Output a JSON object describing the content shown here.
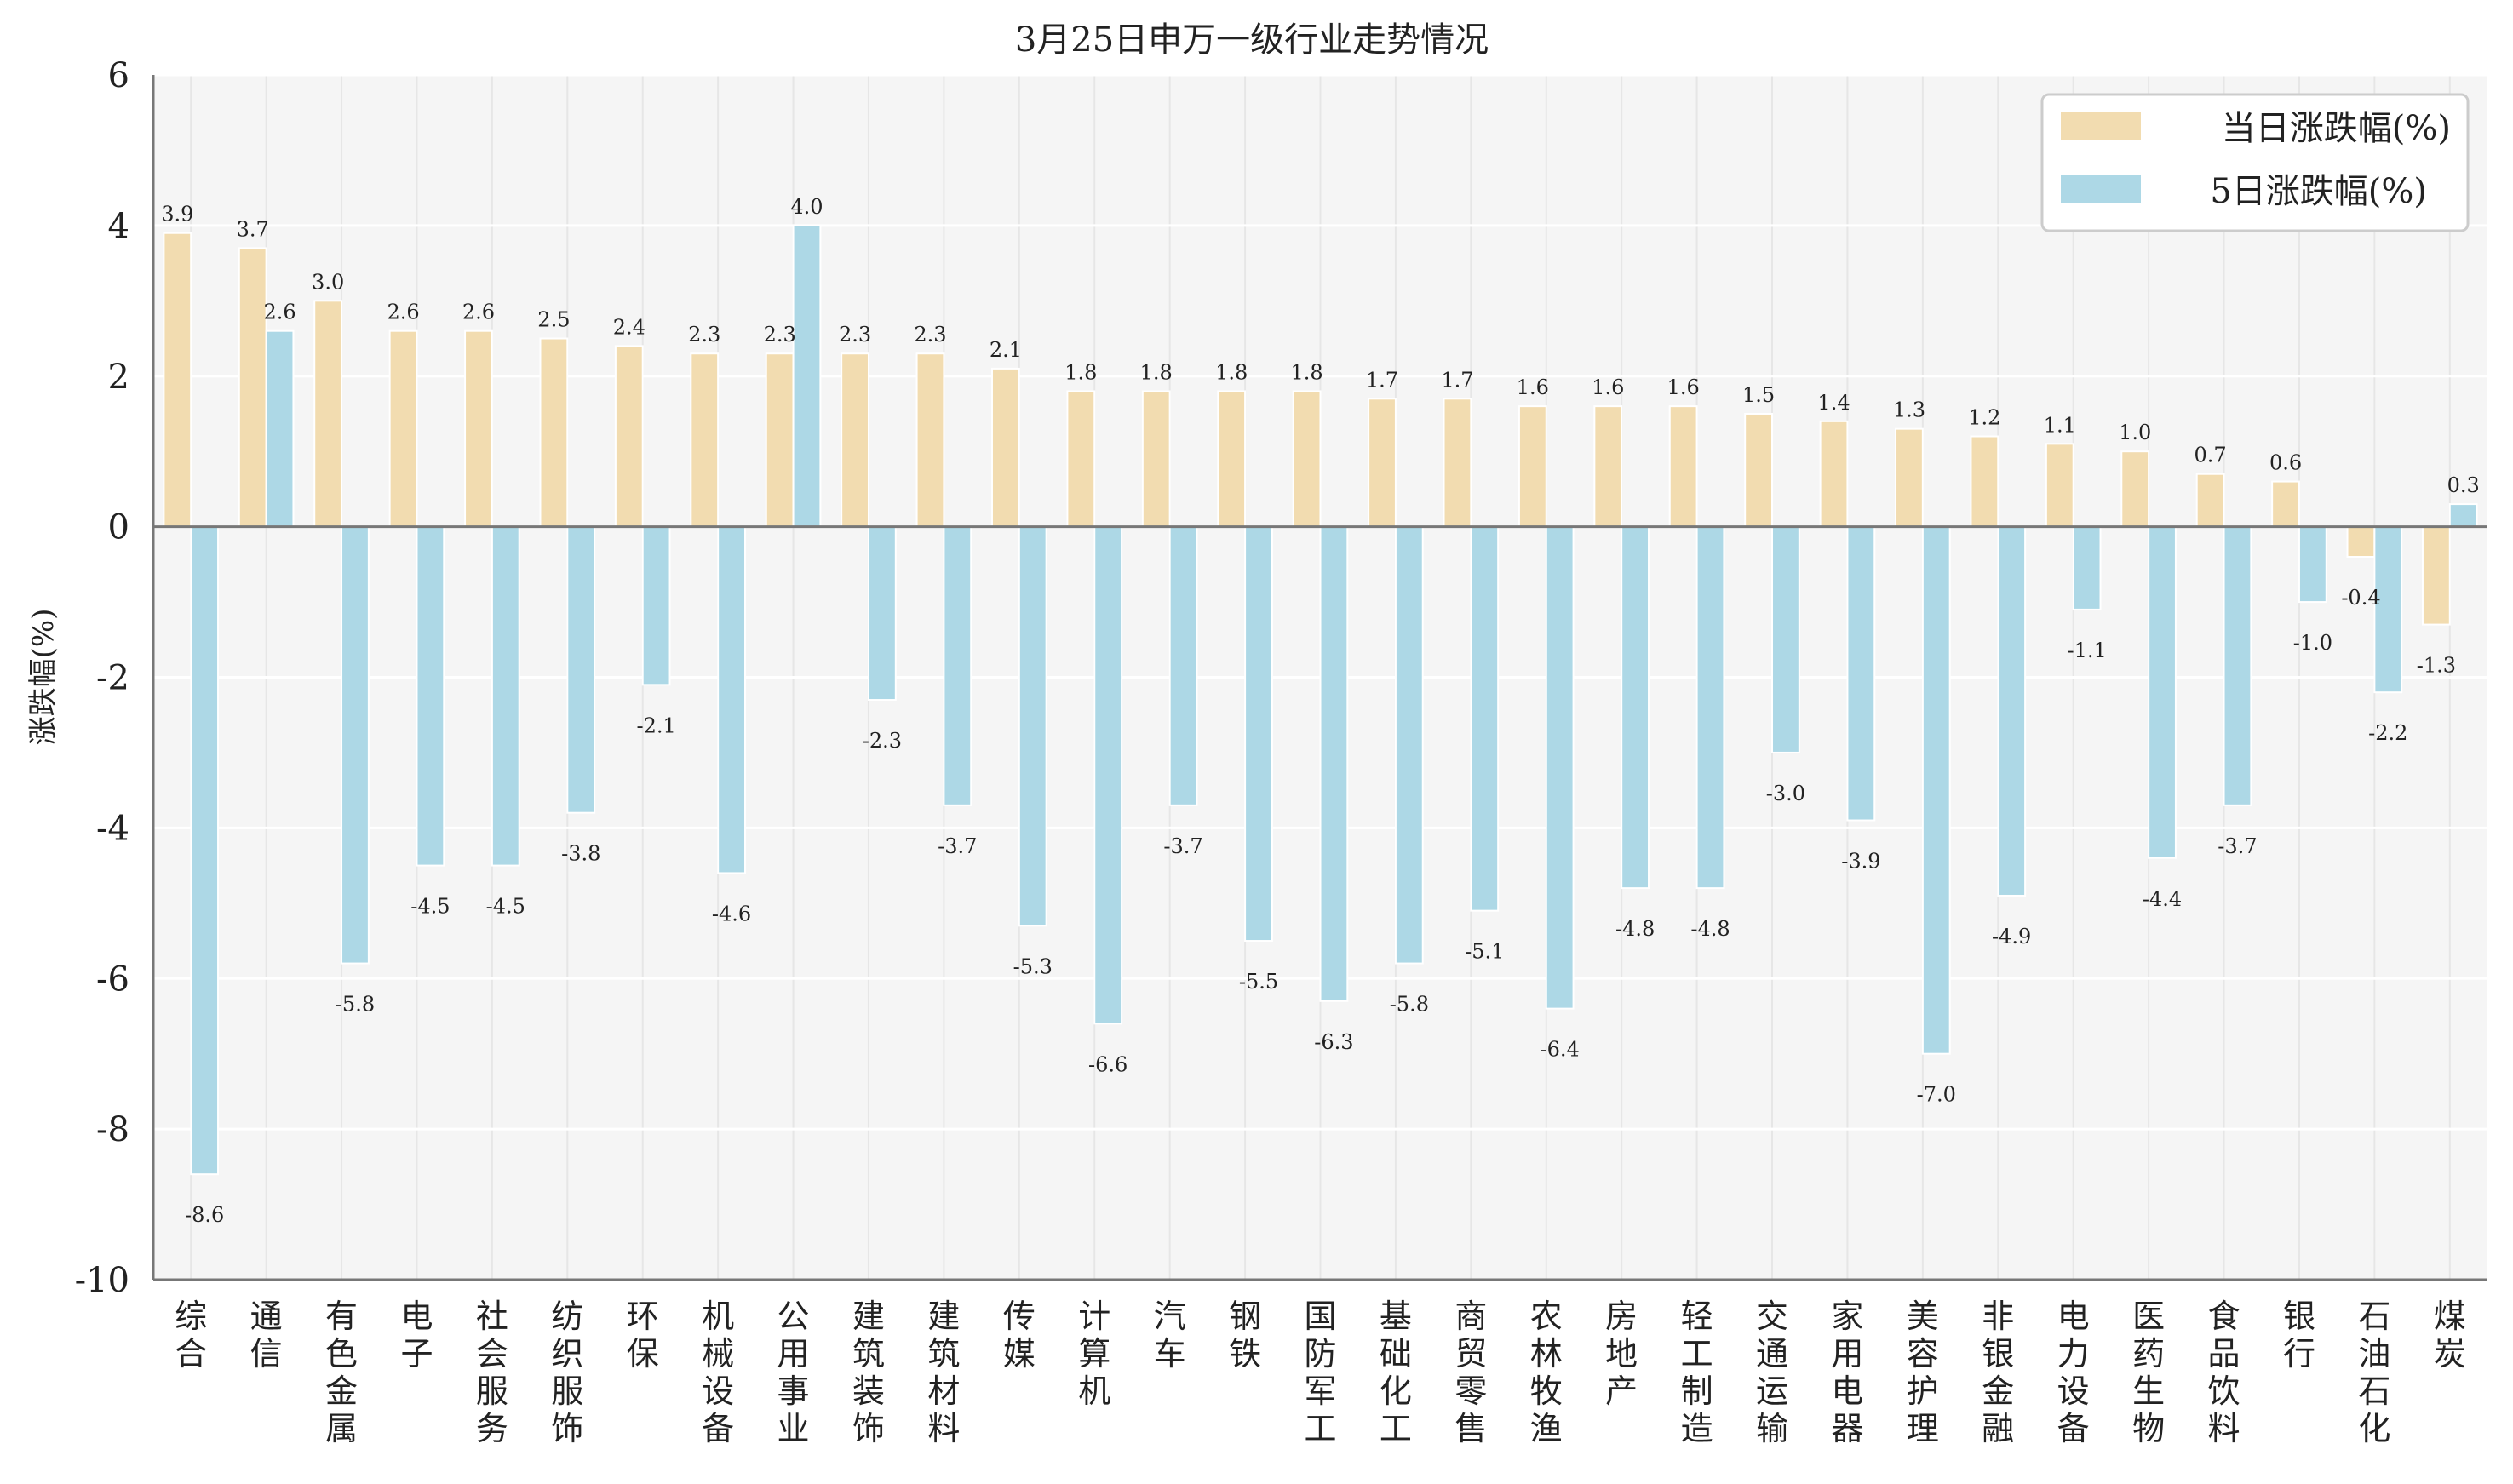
{
  "chart_data": {
    "type": "bar",
    "title": "3月25日申万一级行业走势情况",
    "xlabel": "",
    "ylabel": "涨跌幅(%)",
    "ylim": [
      -10,
      6
    ],
    "yticks": [
      6,
      4,
      2,
      0,
      -2,
      -4,
      -6,
      -8,
      -10
    ],
    "grid": true,
    "legend_position": "top-right",
    "categories": [
      "综合",
      "通信",
      "有色金属",
      "电子",
      "社会服务",
      "纺织服饰",
      "环保",
      "机械设备",
      "公用事业",
      "建筑装饰",
      "建筑材料",
      "传媒",
      "计算机",
      "汽车",
      "钢铁",
      "国防军工",
      "基础化工",
      "商贸零售",
      "农林牧渔",
      "房地产",
      "轻工制造",
      "交通运输",
      "家用电器",
      "美容护理",
      "非银金融",
      "电力设备",
      "医药生物",
      "食品饮料",
      "银行",
      "石油石化",
      "煤炭"
    ],
    "series": [
      {
        "name": "当日涨跌幅(%)",
        "color": "#f2dcb0",
        "values": [
          3.9,
          3.7,
          3.0,
          2.6,
          2.6,
          2.5,
          2.4,
          2.3,
          2.3,
          2.3,
          2.3,
          2.1,
          1.8,
          1.8,
          1.8,
          1.8,
          1.7,
          1.7,
          1.6,
          1.6,
          1.6,
          1.5,
          1.4,
          1.3,
          1.2,
          1.1,
          1.0,
          0.7,
          0.6,
          -0.4,
          -1.3
        ]
      },
      {
        "name": "5日涨跌幅(%)",
        "color": "#add8e6",
        "values": [
          -8.6,
          2.6,
          -5.8,
          -4.5,
          -4.5,
          -3.8,
          -2.1,
          -4.6,
          4.0,
          -2.3,
          -3.7,
          -5.3,
          -6.6,
          -3.7,
          -5.5,
          -6.3,
          -5.8,
          -5.1,
          -6.4,
          -4.8,
          -4.8,
          -3.0,
          -3.9,
          -7.0,
          -4.9,
          -1.1,
          -4.4,
          -3.7,
          -1.0,
          -2.2,
          0.3
        ]
      }
    ]
  }
}
